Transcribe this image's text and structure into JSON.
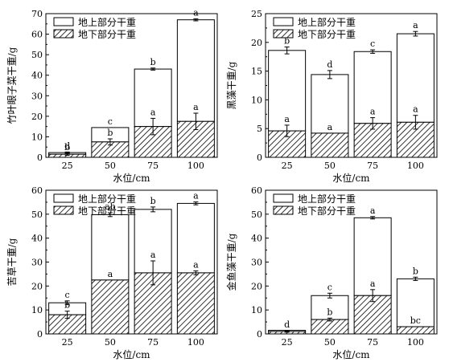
{
  "chart_data": [
    {
      "type": "bar",
      "stacked": true,
      "categories": [
        "25",
        "50",
        "75",
        "100"
      ],
      "xlabel": "水位/cm",
      "ylabel": "竹叶眼子菜干重/g",
      "ylim": [
        0,
        70
      ],
      "yticks": [
        0,
        10,
        20,
        30,
        40,
        50,
        60,
        70
      ],
      "legend": [
        "地上部分干重",
        "地下部分干重"
      ],
      "series": [
        {
          "name": "地下部分干重",
          "values": [
            1.5,
            7.5,
            15,
            17.5
          ],
          "errors": [
            0.5,
            1.5,
            4,
            4
          ],
          "letters": [
            "b",
            "b",
            "a",
            "a"
          ]
        },
        {
          "name": "地上部分干重",
          "values": [
            0.8,
            7.0,
            28,
            49.5
          ],
          "errors": [
            0.3,
            0,
            0.5,
            0.5
          ],
          "letters": [
            "d",
            "c",
            "b",
            "a"
          ]
        }
      ]
    },
    {
      "type": "bar",
      "stacked": true,
      "categories": [
        "25",
        "50",
        "75",
        "100"
      ],
      "xlabel": "水位/cm",
      "ylabel": "黑藻干重/g",
      "ylim": [
        0,
        25
      ],
      "yticks": [
        0,
        5,
        10,
        15,
        20,
        25
      ],
      "legend": [
        "地上部分干重",
        "地下部分干重"
      ],
      "series": [
        {
          "name": "地下部分干重",
          "values": [
            4.6,
            4.2,
            5.9,
            6.1
          ],
          "errors": [
            1.0,
            0,
            1.0,
            1.2
          ],
          "letters": [
            "a",
            "a",
            "a",
            "a"
          ]
        },
        {
          "name": "地上部分干重",
          "values": [
            14.0,
            10.2,
            12.5,
            15.4
          ],
          "errors": [
            0.6,
            0.7,
            0.3,
            0.4
          ],
          "letters": [
            "b",
            "d",
            "c",
            "a"
          ]
        }
      ]
    },
    {
      "type": "bar",
      "stacked": true,
      "categories": [
        "25",
        "50",
        "75",
        "100"
      ],
      "xlabel": "水位/cm",
      "ylabel": "苦草干重/g",
      "ylim": [
        0,
        60
      ],
      "yticks": [
        0,
        10,
        20,
        30,
        40,
        50,
        60
      ],
      "legend": [
        "地上部分干重",
        "地下部分干重"
      ],
      "series": [
        {
          "name": "地下部分干重",
          "values": [
            8.0,
            22.5,
            25.5,
            25.5
          ],
          "errors": [
            1.5,
            0,
            5.0,
            0.8
          ],
          "letters": [
            "b",
            "a",
            "a",
            "a"
          ]
        },
        {
          "name": "地上部分干重",
          "values": [
            5.0,
            27.3,
            26.5,
            29.0
          ],
          "errors": [
            0.8,
            0.8,
            1.0,
            0.6
          ],
          "letters": [
            "c",
            "ab",
            "b",
            "a"
          ]
        }
      ]
    },
    {
      "type": "bar",
      "stacked": true,
      "categories": [
        "25",
        "50",
        "75",
        "100"
      ],
      "xlabel": "水位/cm",
      "ylabel": "金鱼藻干重/g",
      "ylim": [
        0,
        60
      ],
      "yticks": [
        0,
        10,
        20,
        30,
        40,
        50,
        60
      ],
      "legend": [
        "地上部分干重",
        "地下部分干重"
      ],
      "series": [
        {
          "name": "地下部分干重",
          "values": [
            1.0,
            6.0,
            16.0,
            3.0
          ],
          "errors": [
            0.3,
            0.6,
            2.5,
            0
          ],
          "letters": [
            "d",
            "b",
            "a",
            "bc"
          ]
        },
        {
          "name": "地上部分干重",
          "values": [
            0.5,
            10.0,
            32.5,
            20.0
          ],
          "errors": [
            0,
            1.0,
            0.5,
            0.7
          ],
          "letters": [
            "",
            "c",
            "a",
            "b"
          ]
        }
      ]
    }
  ]
}
